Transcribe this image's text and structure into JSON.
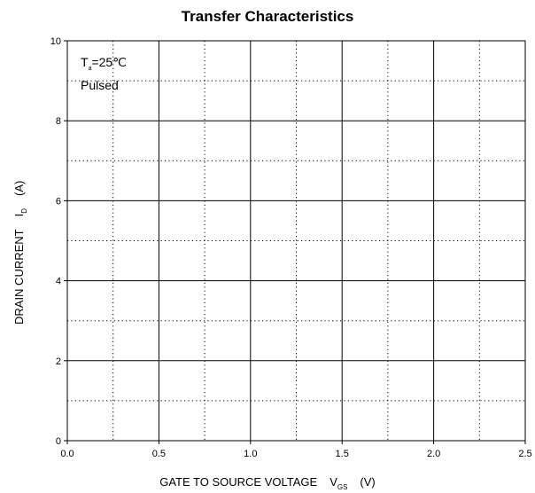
{
  "chart_data": {
    "type": "line",
    "title": "Transfer Characteristics",
    "xlabel": {
      "main": "GATE TO SOURCE VOLTAGE",
      "symbol": "V",
      "subscript": "GS",
      "unit": "(V)"
    },
    "ylabel": {
      "main": "DRAIN CURRENT",
      "symbol": "I",
      "subscript": "D",
      "unit": "(A)"
    },
    "xlim": [
      0,
      2.5
    ],
    "ylim": [
      0,
      10
    ],
    "x_ticks": [
      "0.0",
      "0.5",
      "1.0",
      "1.5",
      "2.0",
      "2.5"
    ],
    "y_ticks": [
      "0",
      "2",
      "4",
      "6",
      "8",
      "10"
    ],
    "x_major_step": 0.5,
    "x_minor_step": 0.25,
    "y_major_step": 2,
    "y_minor_step": 1,
    "grid": true,
    "series": [],
    "annotations": {
      "temp_symbol": "T",
      "temp_subscript": "a",
      "temp_value": "=25℃",
      "mode": "Pulsed"
    }
  }
}
